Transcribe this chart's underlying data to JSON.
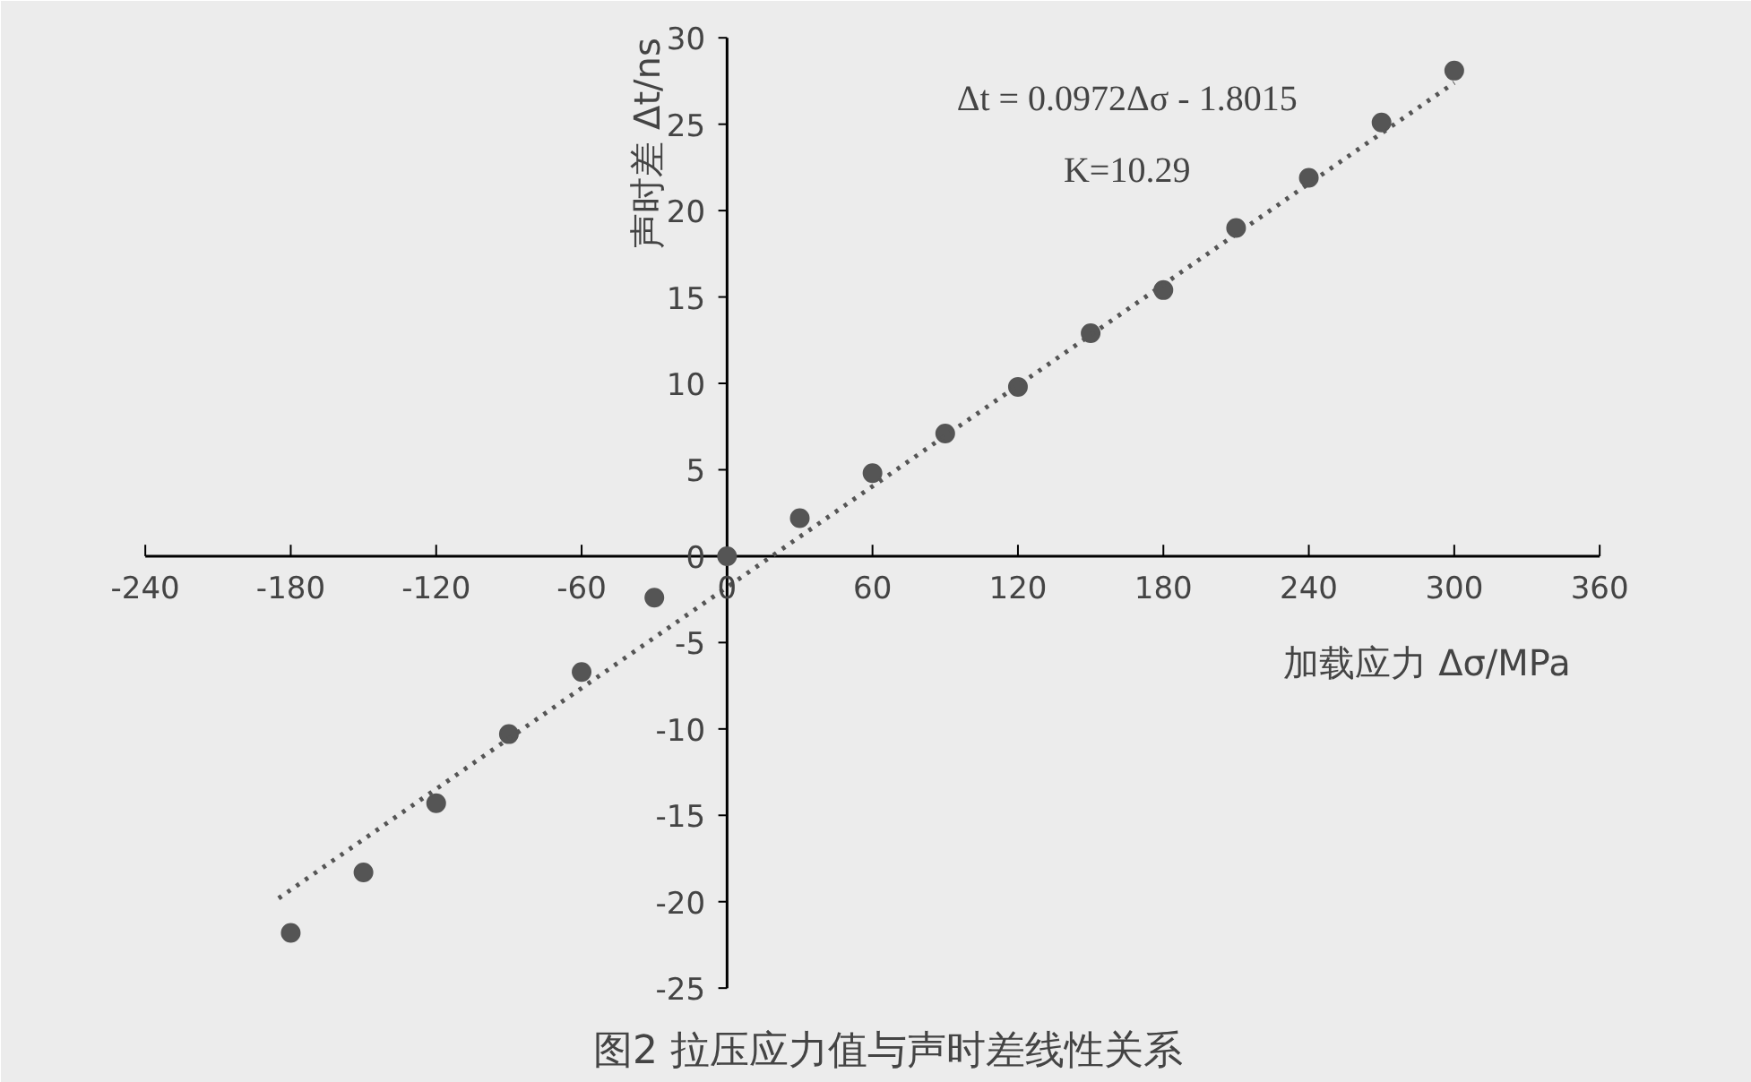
{
  "chart_data": {
    "type": "scatter",
    "title": "图2  拉压应力值与声时差线性关系",
    "xlabel": "加载应力 Δσ/MPa",
    "ylabel": "声时差 Δt/ns",
    "x": [
      -180,
      -150,
      -120,
      -90,
      -60,
      -30,
      0,
      30,
      60,
      90,
      120,
      150,
      180,
      210,
      240,
      270,
      300
    ],
    "series": [
      {
        "color": "#555555",
        "marker": "circle",
        "values": [
          -21.8,
          -18.3,
          -14.3,
          -10.3,
          -6.7,
          -2.4,
          0,
          2.2,
          4.8,
          7.1,
          9.8,
          12.9,
          15.4,
          19.0,
          21.9,
          25.1,
          28.1
        ]
      },
      {
        "type": "line",
        "color": "#555555",
        "line_style": "dotted",
        "x": [
          -185,
          300
        ],
        "values": [
          -19.8,
          27.4
        ]
      }
    ],
    "annotations": [
      "Δt = 0.0972Δσ - 1.8015",
      "K=10.29"
    ],
    "xlim": [
      -240,
      360
    ],
    "ylim": [
      -25,
      30
    ],
    "xticks": [
      -240,
      -180,
      -120,
      -60,
      0,
      60,
      120,
      180,
      240,
      300,
      360
    ],
    "yticks": [
      -25,
      -20,
      -15,
      -10,
      -5,
      0,
      5,
      10,
      15,
      20,
      25,
      30
    ],
    "grid": false
  }
}
